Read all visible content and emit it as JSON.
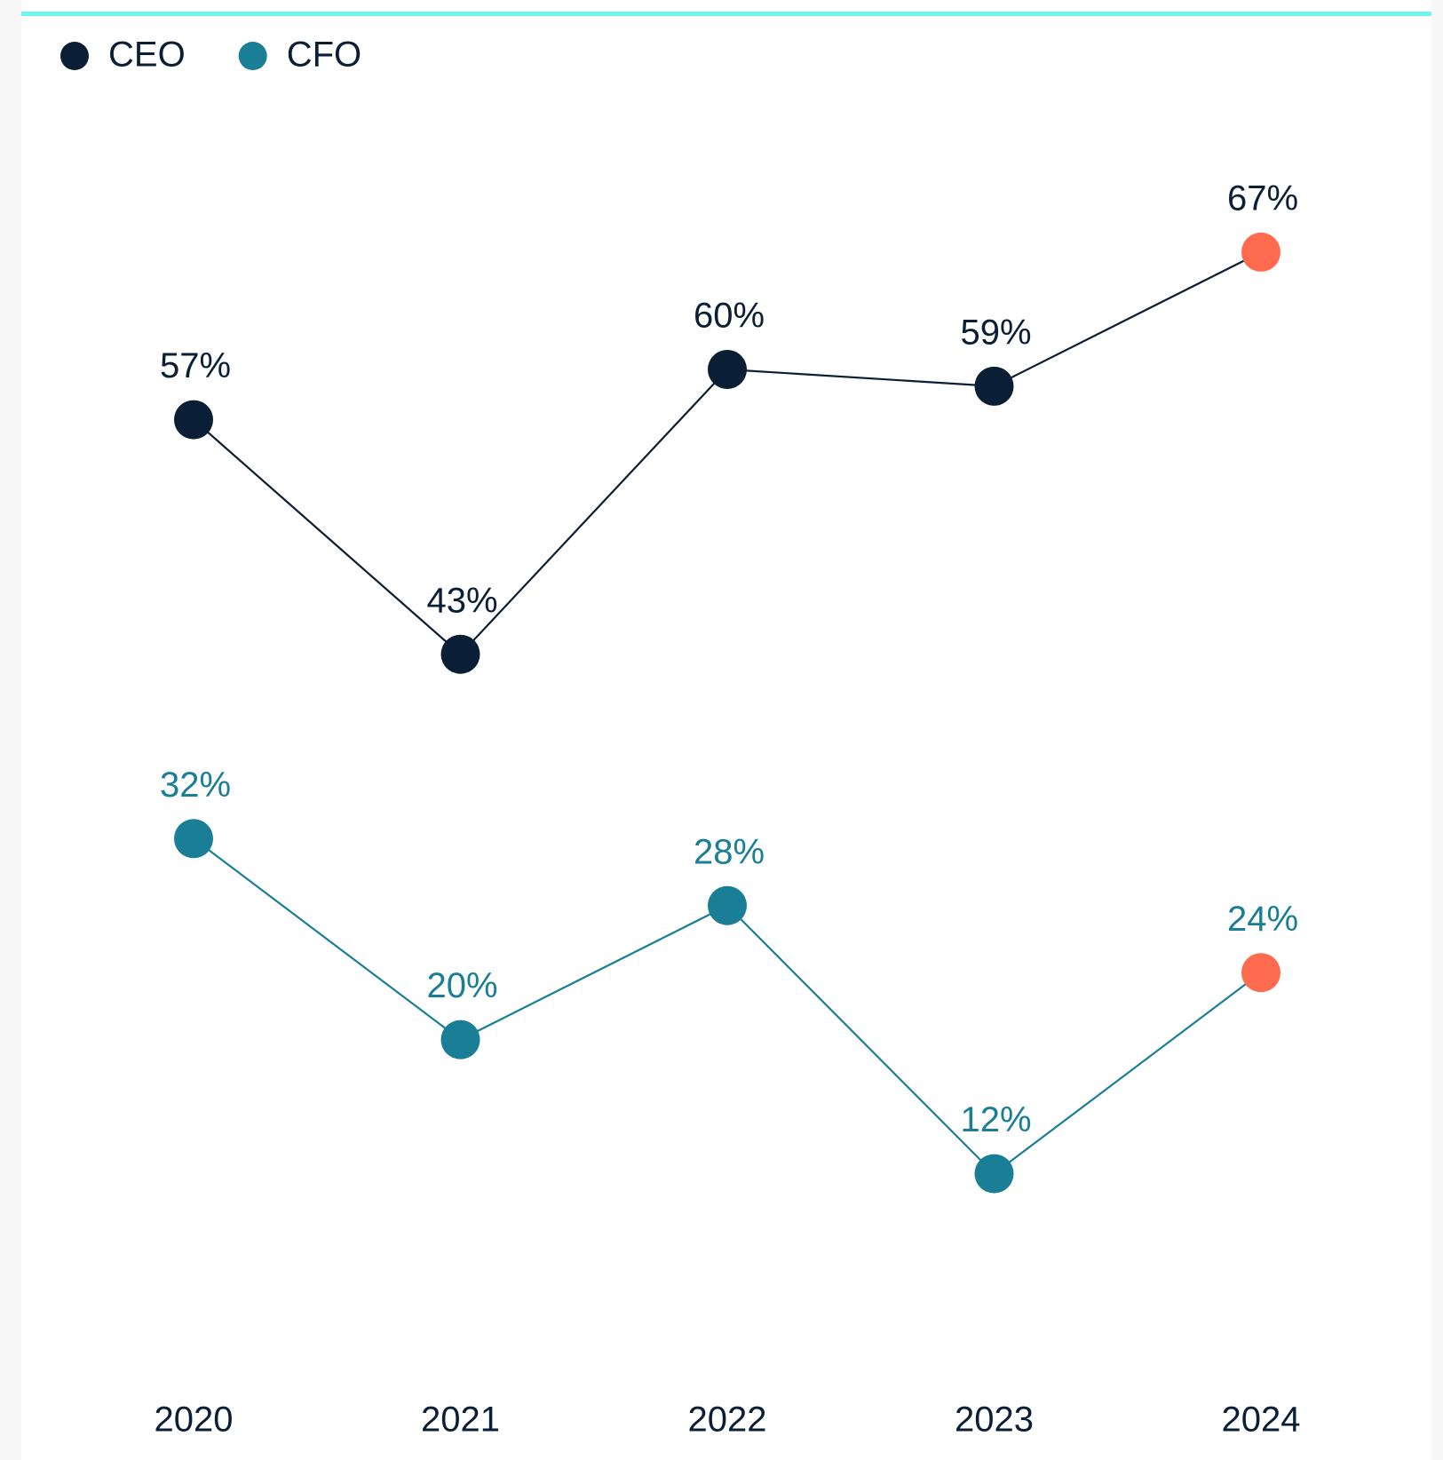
{
  "chart_data": {
    "type": "line",
    "categories": [
      "2020",
      "2021",
      "2022",
      "2023",
      "2024"
    ],
    "series": [
      {
        "name": "CEO",
        "color": "#0a1f35",
        "values": [
          57,
          43,
          60,
          59,
          67
        ],
        "value_labels": [
          "57%",
          "43%",
          "60%",
          "59%",
          "67%"
        ],
        "marker_colors": [
          "#0a1f35",
          "#0a1f35",
          "#0a1f35",
          "#0a1f35",
          "#ff6b4f"
        ]
      },
      {
        "name": "CFO",
        "color": "#1a7f96",
        "values": [
          32,
          20,
          28,
          12,
          24
        ],
        "value_labels": [
          "32%",
          "20%",
          "28%",
          "12%",
          "24%"
        ],
        "marker_colors": [
          "#1a7f96",
          "#1a7f96",
          "#1a7f96",
          "#1a7f96",
          "#ff6b4f"
        ]
      }
    ],
    "ylim": [
      0,
      75
    ],
    "legend": "top-left"
  }
}
